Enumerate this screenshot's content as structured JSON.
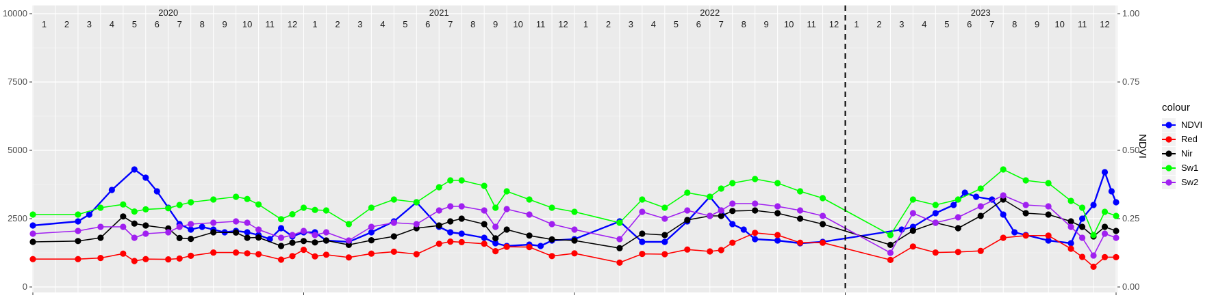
{
  "chart_data": {
    "type": "line",
    "ylabel_right": "NDVI",
    "y_left_ticks": [
      "0",
      "2500",
      "5000",
      "7500",
      "10000"
    ],
    "y_left_range": [
      0,
      10000
    ],
    "y_right_ticks": [
      "0.00",
      "0.25",
      "0.50",
      "0.75",
      "1.00"
    ],
    "y_right_range": [
      0,
      1
    ],
    "years": [
      "2020",
      "2021",
      "2022",
      "2023"
    ],
    "months": [
      "1",
      "2",
      "3",
      "4",
      "5",
      "6",
      "7",
      "8",
      "9",
      "10",
      "11",
      "12"
    ],
    "x_unit": "fractional month index from Jan 2020 (0 = start of Jan 2020)",
    "x_range": [
      0,
      48
    ],
    "vline_x": 36,
    "legend_title": "colour",
    "grid": true,
    "series": [
      {
        "name": "NDVI",
        "color": "#0000ff",
        "axis": "right",
        "points": [
          [
            0,
            0.225
          ],
          [
            2,
            0.24
          ],
          [
            2.5,
            0.265
          ],
          [
            3.5,
            0.355
          ],
          [
            4.5,
            0.43
          ],
          [
            5,
            0.4
          ],
          [
            5.5,
            0.35
          ],
          [
            6,
            0.29
          ],
          [
            6.5,
            0.23
          ],
          [
            7,
            0.21
          ],
          [
            7.5,
            0.22
          ],
          [
            8,
            0.21
          ],
          [
            8.5,
            0.2
          ],
          [
            9,
            0.205
          ],
          [
            9.5,
            0.2
          ],
          [
            10,
            0.19
          ],
          [
            10.5,
            0.175
          ],
          [
            11,
            0.215
          ],
          [
            11.5,
            0.185
          ],
          [
            12,
            0.2
          ],
          [
            12.5,
            0.2
          ],
          [
            13,
            0.17
          ],
          [
            14,
            0.165
          ],
          [
            15,
            0.2
          ],
          [
            16,
            0.24
          ],
          [
            17,
            0.31
          ],
          [
            18,
            0.22
          ],
          [
            18.5,
            0.2
          ],
          [
            19,
            0.195
          ],
          [
            20,
            0.18
          ],
          [
            20.5,
            0.16
          ],
          [
            21,
            0.15
          ],
          [
            22,
            0.155
          ],
          [
            22.5,
            0.15
          ],
          [
            23,
            0.17
          ],
          [
            24,
            0.175
          ],
          [
            26,
            0.24
          ],
          [
            27,
            0.165
          ],
          [
            28,
            0.165
          ],
          [
            29,
            0.24
          ],
          [
            30,
            0.33
          ],
          [
            30.5,
            0.28
          ],
          [
            31,
            0.23
          ],
          [
            31.5,
            0.21
          ],
          [
            32,
            0.175
          ],
          [
            33,
            0.17
          ],
          [
            34,
            0.16
          ],
          [
            35,
            0.165
          ],
          [
            38.5,
            0.21
          ],
          [
            39,
            0.22
          ],
          [
            40,
            0.27
          ],
          [
            40.8,
            0.3
          ],
          [
            41.3,
            0.345
          ],
          [
            41.8,
            0.33
          ],
          [
            42.5,
            0.32
          ],
          [
            43,
            0.265
          ],
          [
            43.5,
            0.2
          ],
          [
            44,
            0.19
          ],
          [
            45,
            0.17
          ],
          [
            46,
            0.16
          ],
          [
            46.5,
            0.25
          ],
          [
            47,
            0.3
          ],
          [
            47.5,
            0.42
          ],
          [
            47.8,
            0.35
          ],
          [
            48,
            0.31
          ]
        ]
      },
      {
        "name": "Red",
        "color": "#ff0000",
        "axis": "left",
        "points": [
          [
            0,
            1020
          ],
          [
            2,
            1020
          ],
          [
            3,
            1060
          ],
          [
            4,
            1220
          ],
          [
            4.5,
            950
          ],
          [
            5,
            1020
          ],
          [
            6,
            1010
          ],
          [
            6.5,
            1040
          ],
          [
            7,
            1140
          ],
          [
            8,
            1260
          ],
          [
            9,
            1260
          ],
          [
            9.5,
            1230
          ],
          [
            10,
            1200
          ],
          [
            11,
            1000
          ],
          [
            11.5,
            1130
          ],
          [
            12,
            1360
          ],
          [
            12.5,
            1120
          ],
          [
            13,
            1180
          ],
          [
            14,
            1080
          ],
          [
            15,
            1220
          ],
          [
            16,
            1290
          ],
          [
            17,
            1200
          ],
          [
            18,
            1580
          ],
          [
            18.5,
            1660
          ],
          [
            19,
            1640
          ],
          [
            20,
            1580
          ],
          [
            20.5,
            1310
          ],
          [
            21,
            1470
          ],
          [
            22,
            1460
          ],
          [
            23,
            1130
          ],
          [
            24,
            1230
          ],
          [
            26,
            890
          ],
          [
            27,
            1210
          ],
          [
            28,
            1200
          ],
          [
            29,
            1370
          ],
          [
            30,
            1300
          ],
          [
            30.5,
            1350
          ],
          [
            31,
            1620
          ],
          [
            32,
            1980
          ],
          [
            33,
            1900
          ],
          [
            34,
            1620
          ],
          [
            35,
            1620
          ],
          [
            38,
            990
          ],
          [
            39,
            1480
          ],
          [
            40,
            1260
          ],
          [
            41,
            1280
          ],
          [
            42,
            1320
          ],
          [
            43,
            1800
          ],
          [
            44,
            1880
          ],
          [
            45,
            1880
          ],
          [
            46,
            1400
          ],
          [
            46.5,
            1100
          ],
          [
            47,
            740
          ],
          [
            47.5,
            1090
          ],
          [
            48,
            1090
          ]
        ]
      },
      {
        "name": "Nir",
        "color": "#000000",
        "axis": "left",
        "points": [
          [
            0,
            1650
          ],
          [
            2,
            1680
          ],
          [
            3,
            1800
          ],
          [
            4,
            2580
          ],
          [
            4.5,
            2320
          ],
          [
            5,
            2250
          ],
          [
            6,
            2140
          ],
          [
            6.5,
            1790
          ],
          [
            7,
            1760
          ],
          [
            8,
            2000
          ],
          [
            9,
            1990
          ],
          [
            9.5,
            1800
          ],
          [
            10,
            1810
          ],
          [
            11,
            1500
          ],
          [
            11.5,
            1620
          ],
          [
            12,
            1680
          ],
          [
            12.5,
            1630
          ],
          [
            13,
            1700
          ],
          [
            14,
            1540
          ],
          [
            15,
            1710
          ],
          [
            16,
            1850
          ],
          [
            17,
            2150
          ],
          [
            18,
            2250
          ],
          [
            18.5,
            2400
          ],
          [
            19,
            2500
          ],
          [
            20,
            2300
          ],
          [
            20.5,
            1780
          ],
          [
            21,
            2100
          ],
          [
            22,
            1880
          ],
          [
            23,
            1740
          ],
          [
            24,
            1700
          ],
          [
            26,
            1420
          ],
          [
            27,
            1950
          ],
          [
            28,
            1900
          ],
          [
            29,
            2450
          ],
          [
            30,
            2600
          ],
          [
            30.5,
            2600
          ],
          [
            31,
            2780
          ],
          [
            32,
            2800
          ],
          [
            33,
            2700
          ],
          [
            34,
            2500
          ],
          [
            35,
            2300
          ],
          [
            38,
            1540
          ],
          [
            39,
            2060
          ],
          [
            40,
            2350
          ],
          [
            41,
            2150
          ],
          [
            42,
            2600
          ],
          [
            43,
            3200
          ],
          [
            44,
            2700
          ],
          [
            45,
            2650
          ],
          [
            46,
            2400
          ],
          [
            46.5,
            2200
          ],
          [
            47,
            1850
          ],
          [
            47.5,
            2200
          ],
          [
            48,
            2050
          ]
        ]
      },
      {
        "name": "Sw1",
        "color": "#00ff00",
        "axis": "left",
        "points": [
          [
            0,
            2650
          ],
          [
            2,
            2650
          ],
          [
            3,
            2900
          ],
          [
            4,
            3020
          ],
          [
            4.5,
            2760
          ],
          [
            5,
            2840
          ],
          [
            6,
            2880
          ],
          [
            6.5,
            3000
          ],
          [
            7,
            3100
          ],
          [
            8,
            3200
          ],
          [
            9,
            3300
          ],
          [
            9.5,
            3220
          ],
          [
            10,
            3020
          ],
          [
            11,
            2480
          ],
          [
            11.5,
            2660
          ],
          [
            12,
            2900
          ],
          [
            12.5,
            2820
          ],
          [
            13,
            2800
          ],
          [
            14,
            2300
          ],
          [
            15,
            2900
          ],
          [
            16,
            3200
          ],
          [
            17,
            3100
          ],
          [
            18,
            3650
          ],
          [
            18.5,
            3900
          ],
          [
            19,
            3900
          ],
          [
            20,
            3700
          ],
          [
            20.5,
            2900
          ],
          [
            21,
            3500
          ],
          [
            22,
            3200
          ],
          [
            23,
            2900
          ],
          [
            24,
            2750
          ],
          [
            26,
            2350
          ],
          [
            27,
            3200
          ],
          [
            28,
            2900
          ],
          [
            29,
            3450
          ],
          [
            30,
            3300
          ],
          [
            30.5,
            3600
          ],
          [
            31,
            3800
          ],
          [
            32,
            3950
          ],
          [
            33,
            3800
          ],
          [
            34,
            3500
          ],
          [
            35,
            3250
          ],
          [
            38,
            1900
          ],
          [
            39,
            3200
          ],
          [
            40,
            3000
          ],
          [
            41,
            3200
          ],
          [
            42,
            3600
          ],
          [
            43,
            4300
          ],
          [
            44,
            3900
          ],
          [
            45,
            3800
          ],
          [
            46,
            3150
          ],
          [
            46.5,
            2900
          ],
          [
            47,
            1900
          ],
          [
            47.5,
            2750
          ],
          [
            48,
            2600
          ]
        ]
      },
      {
        "name": "Sw2",
        "color": "#a020f0",
        "axis": "left",
        "points": [
          [
            0,
            1950
          ],
          [
            2,
            2050
          ],
          [
            3,
            2200
          ],
          [
            4,
            2200
          ],
          [
            4.5,
            1800
          ],
          [
            5,
            1950
          ],
          [
            6,
            2000
          ],
          [
            6.5,
            2200
          ],
          [
            7,
            2300
          ],
          [
            8,
            2350
          ],
          [
            9,
            2400
          ],
          [
            9.5,
            2350
          ],
          [
            10,
            2100
          ],
          [
            11,
            1800
          ],
          [
            11.5,
            1900
          ],
          [
            12,
            2050
          ],
          [
            12.5,
            1900
          ],
          [
            13,
            2000
          ],
          [
            14,
            1700
          ],
          [
            15,
            2200
          ],
          [
            16,
            2350
          ],
          [
            17,
            2300
          ],
          [
            18,
            2800
          ],
          [
            18.5,
            2950
          ],
          [
            19,
            2950
          ],
          [
            20,
            2800
          ],
          [
            20.5,
            2200
          ],
          [
            21,
            2850
          ],
          [
            22,
            2650
          ],
          [
            23,
            2300
          ],
          [
            24,
            2100
          ],
          [
            26,
            1750
          ],
          [
            27,
            2750
          ],
          [
            28,
            2500
          ],
          [
            29,
            2800
          ],
          [
            30,
            2600
          ],
          [
            30.5,
            2800
          ],
          [
            31,
            3050
          ],
          [
            32,
            3050
          ],
          [
            33,
            2950
          ],
          [
            34,
            2800
          ],
          [
            35,
            2600
          ],
          [
            38,
            1250
          ],
          [
            39,
            2700
          ],
          [
            40,
            2350
          ],
          [
            41,
            2550
          ],
          [
            42,
            2950
          ],
          [
            43,
            3350
          ],
          [
            44,
            3000
          ],
          [
            45,
            2950
          ],
          [
            46,
            2200
          ],
          [
            46.5,
            1800
          ],
          [
            47,
            1150
          ],
          [
            47.5,
            1950
          ],
          [
            48,
            1800
          ]
        ]
      }
    ]
  }
}
